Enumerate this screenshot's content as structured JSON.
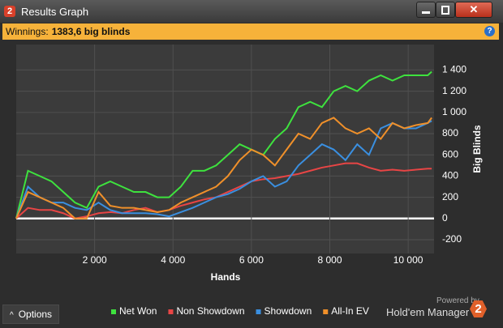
{
  "window": {
    "title": "Results Graph"
  },
  "header": {
    "label": "Winnings:",
    "value": "1383,6 big blinds"
  },
  "footer": {
    "options": "Options",
    "powered_by": "Powered by",
    "brand": "Hold'em Manager",
    "logo": "2"
  },
  "chart_data": {
    "type": "line",
    "x_label": "Hands",
    "y_label": "Big Blinds",
    "x": [
      0,
      300,
      600,
      900,
      1200,
      1500,
      1800,
      2100,
      2400,
      2700,
      3000,
      3300,
      3600,
      3900,
      4200,
      4500,
      4800,
      5100,
      5400,
      5700,
      6000,
      6300,
      6600,
      6900,
      7200,
      7500,
      7800,
      8100,
      8400,
      8700,
      9000,
      9300,
      9600,
      9900,
      10200,
      10500,
      10600
    ],
    "series": [
      {
        "name": "Net Won",
        "color": "#3ee23e",
        "values": [
          0,
          450,
          400,
          350,
          250,
          150,
          100,
          300,
          350,
          300,
          250,
          250,
          200,
          200,
          300,
          450,
          450,
          500,
          600,
          700,
          650,
          600,
          750,
          850,
          1050,
          1100,
          1050,
          1200,
          1250,
          1200,
          1300,
          1350,
          1300,
          1350,
          1350,
          1350,
          1384
        ]
      },
      {
        "name": "Non Showdown",
        "color": "#e84545",
        "values": [
          0,
          100,
          80,
          80,
          50,
          0,
          20,
          50,
          60,
          50,
          80,
          100,
          60,
          80,
          120,
          150,
          180,
          200,
          250,
          300,
          350,
          370,
          380,
          400,
          420,
          450,
          480,
          500,
          520,
          520,
          480,
          450,
          460,
          450,
          460,
          470,
          470
        ]
      },
      {
        "name": "Showdown",
        "color": "#3a8fe0",
        "values": [
          0,
          300,
          200,
          150,
          150,
          100,
          80,
          150,
          80,
          50,
          50,
          50,
          40,
          20,
          60,
          100,
          150,
          200,
          230,
          280,
          350,
          400,
          300,
          350,
          500,
          600,
          700,
          650,
          550,
          700,
          600,
          850,
          900,
          850,
          850,
          900,
          920
        ]
      },
      {
        "name": "All-In EV",
        "color": "#f0902a",
        "values": [
          0,
          250,
          200,
          150,
          100,
          0,
          0,
          250,
          120,
          100,
          100,
          80,
          60,
          80,
          150,
          200,
          250,
          300,
          400,
          550,
          650,
          600,
          500,
          650,
          800,
          750,
          900,
          950,
          850,
          800,
          850,
          750,
          900,
          850,
          880,
          900,
          950
        ]
      }
    ],
    "xlim": [
      0,
      10660
    ],
    "ylim": [
      -330,
      1640
    ],
    "xticks": [
      {
        "value": 2000,
        "label": "2 000"
      },
      {
        "value": 4000,
        "label": "4 000"
      },
      {
        "value": 6000,
        "label": "6 000"
      },
      {
        "value": 8000,
        "label": "8 000"
      },
      {
        "value": 10000,
        "label": "10 000"
      }
    ],
    "yticks": [
      -200,
      0,
      200,
      400,
      600,
      800,
      {
        "value": 1000,
        "label": "1 000"
      },
      {
        "value": 1200,
        "label": "1 200"
      },
      {
        "value": 1400,
        "label": "1 400"
      }
    ],
    "grid": true,
    "legend": "bottom"
  }
}
